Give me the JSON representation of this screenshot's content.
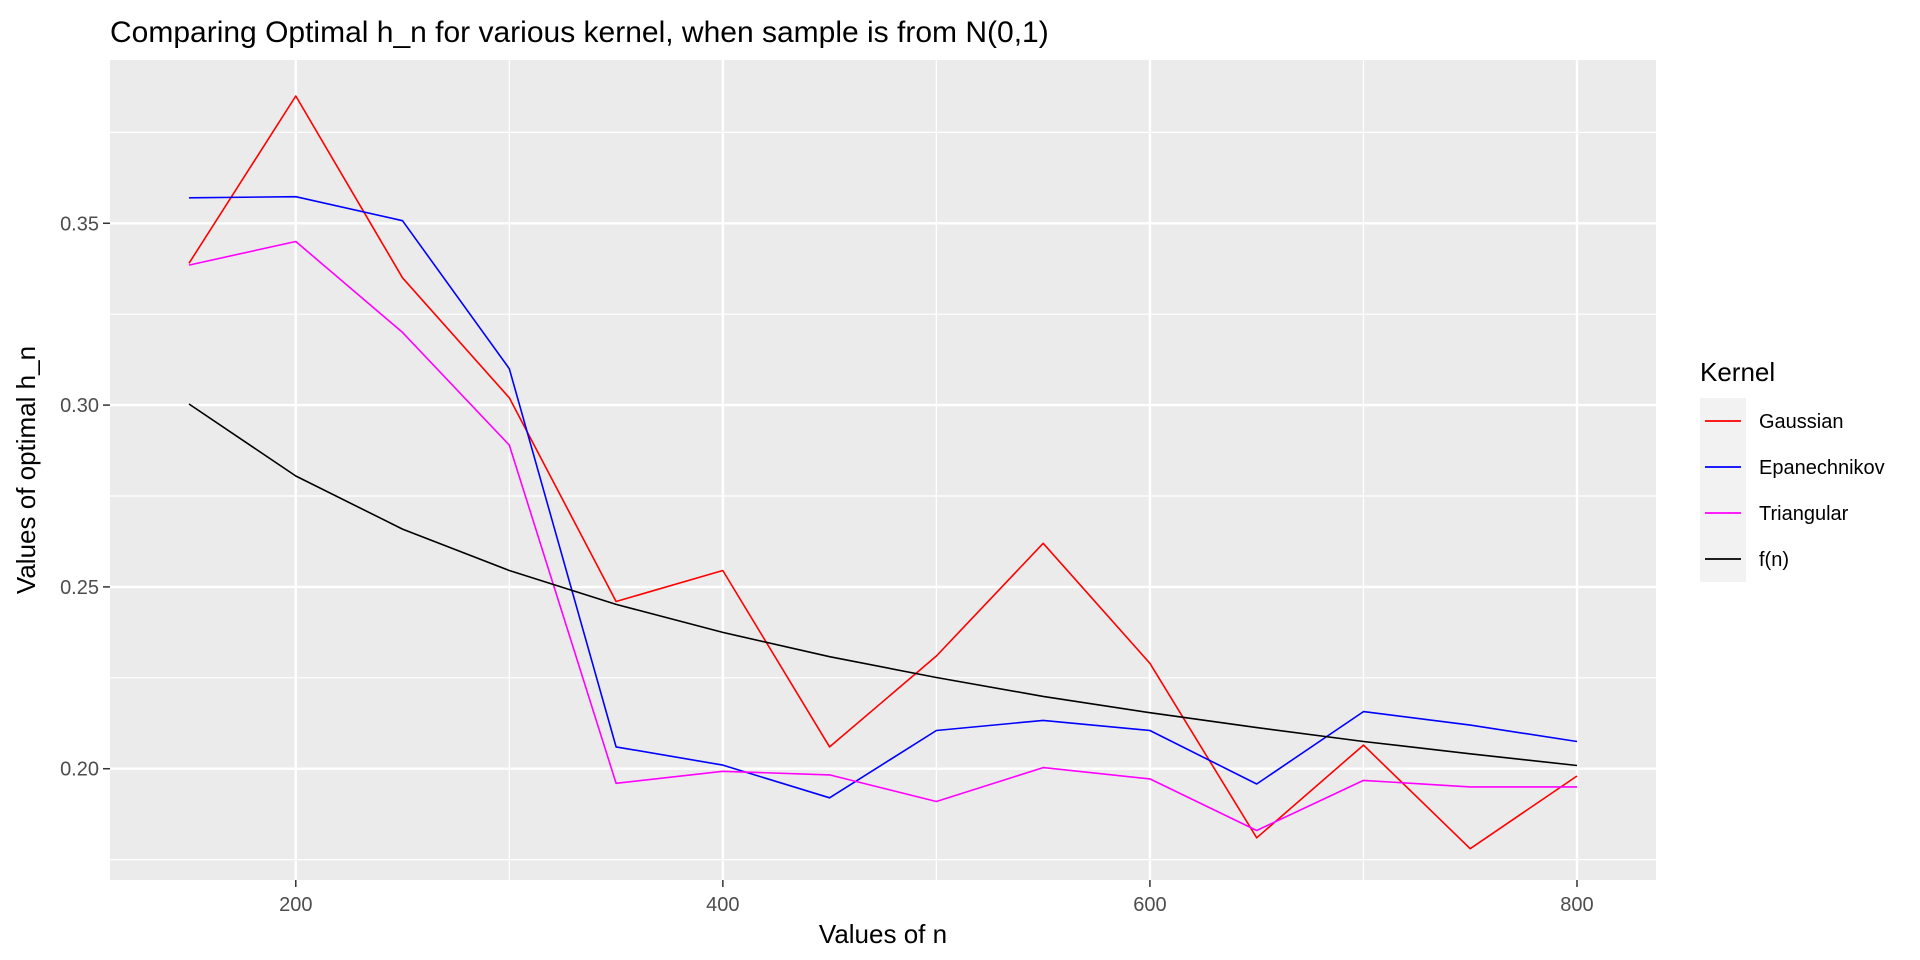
{
  "chart_data": {
    "type": "line",
    "title": "Comparing Optimal h_n for various kernel, when sample is from N(0,1)",
    "xlabel": "Values of n",
    "ylabel": "Values of optimal h_n",
    "xlim": [
      113,
      837
    ],
    "ylim": [
      0.1694,
      0.3949
    ],
    "x_ticks": [
      200,
      400,
      600,
      800
    ],
    "x_tick_labels": [
      "200",
      "400",
      "600",
      "800"
    ],
    "y_ticks": [
      0.2,
      0.25,
      0.3,
      0.35
    ],
    "y_tick_labels": [
      "0.20",
      "0.25",
      "0.30",
      "0.35"
    ],
    "grid": true,
    "legend": {
      "title": "Kernel",
      "position": "right"
    },
    "x": [
      150,
      200,
      250,
      300,
      350,
      400,
      450,
      500,
      550,
      600,
      650,
      700,
      750,
      800
    ],
    "series": [
      {
        "name": "Gaussian",
        "color": "#ff0000",
        "values": [
          0.339,
          0.385,
          0.335,
          0.302,
          0.246,
          0.2545,
          0.206,
          0.231,
          0.262,
          0.229,
          0.181,
          0.2065,
          0.178,
          0.198
        ]
      },
      {
        "name": "Epanechnikov",
        "color": "#0000ff",
        "values": [
          0.357,
          0.3573,
          0.3507,
          0.31,
          0.206,
          0.201,
          0.192,
          0.2105,
          0.2133,
          0.2105,
          0.1958,
          0.2157,
          0.212,
          0.2075
        ]
      },
      {
        "name": "Triangular",
        "color": "#ff00ff",
        "values": [
          0.3385,
          0.345,
          0.32,
          0.289,
          0.196,
          0.1993,
          0.1983,
          0.191,
          0.2003,
          0.1972,
          0.183,
          0.1968,
          0.195,
          0.195
        ]
      },
      {
        "name": "f(n)",
        "color": "#000000",
        "values": [
          0.3003,
          0.2805,
          0.2659,
          0.2545,
          0.2452,
          0.2375,
          0.2308,
          0.2251,
          0.2199,
          0.2154,
          0.2113,
          0.2075,
          0.2041,
          0.2009
        ]
      }
    ]
  }
}
